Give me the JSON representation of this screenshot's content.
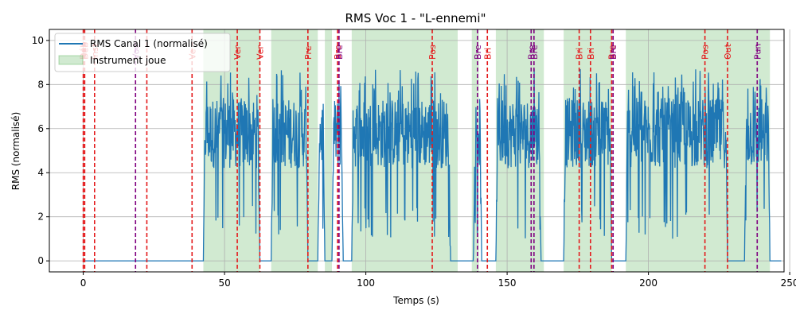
{
  "chart_data": {
    "type": "line",
    "title": "RMS Voc 1 - \"L-ennemi\"",
    "xlabel": "Temps (s)",
    "ylabel": "RMS (normalisé)",
    "xlim": [
      -12,
      248
    ],
    "ylim": [
      -0.5,
      10.5
    ],
    "xticks": [
      0,
      50,
      100,
      150,
      200,
      250
    ],
    "yticks": [
      0,
      2,
      4,
      6,
      8,
      10
    ],
    "grid": true,
    "legend_position": "top-left",
    "colors": {
      "line": "#1f77b4",
      "band": "#2ca02c",
      "marker_red": "#e41a1c",
      "marker_purple": "#800080",
      "grid": "#b0b0b0"
    },
    "series": [
      {
        "name": "RMS Canal 1 (normalisé)",
        "segments": [
          {
            "start": 0,
            "end": 42.5,
            "level": "silence"
          },
          {
            "start": 42.5,
            "end": 62.5,
            "level": "active"
          },
          {
            "start": 62.5,
            "end": 66.5,
            "level": "silence"
          },
          {
            "start": 66.5,
            "end": 79.5,
            "level": "active"
          },
          {
            "start": 79.5,
            "end": 83.0,
            "level": "silence"
          },
          {
            "start": 83.0,
            "end": 85.5,
            "level": "active"
          },
          {
            "start": 85.5,
            "end": 88.0,
            "level": "silence"
          },
          {
            "start": 88.0,
            "end": 92.0,
            "level": "active"
          },
          {
            "start": 92.0,
            "end": 95.0,
            "level": "silence"
          },
          {
            "start": 95.0,
            "end": 130.0,
            "level": "active"
          },
          {
            "start": 130.0,
            "end": 138.0,
            "level": "silence"
          },
          {
            "start": 138.0,
            "end": 141.0,
            "level": "active"
          },
          {
            "start": 141.0,
            "end": 146.0,
            "level": "silence"
          },
          {
            "start": 146.0,
            "end": 162.0,
            "level": "active"
          },
          {
            "start": 162.0,
            "end": 170.0,
            "level": "silence"
          },
          {
            "start": 170.0,
            "end": 187.0,
            "level": "active"
          },
          {
            "start": 187.0,
            "end": 192.0,
            "level": "silence"
          },
          {
            "start": 192.0,
            "end": 228.0,
            "level": "active"
          },
          {
            "start": 228.0,
            "end": 234.0,
            "level": "silence"
          },
          {
            "start": 234.0,
            "end": 243.0,
            "level": "active"
          },
          {
            "start": 243.0,
            "end": 247.0,
            "level": "silence"
          }
        ],
        "active_range": [
          1.0,
          8.7
        ],
        "active_mean": 5.8,
        "silence_value": 0
      }
    ],
    "bands_name": "Instrument joue",
    "bands": [
      [
        42.5,
        62.5
      ],
      [
        66.5,
        83.0
      ],
      [
        85.5,
        88.0
      ],
      [
        95.0,
        132.5
      ],
      [
        137.5,
        140.0
      ],
      [
        146.0,
        163.0
      ],
      [
        170.0,
        180.0
      ],
      [
        180.0,
        187.0
      ],
      [
        192.0,
        243.0
      ]
    ],
    "markers": [
      {
        "x": 0,
        "label": "Déb",
        "color": "red"
      },
      {
        "x": 0.5,
        "label": "Déb",
        "color": "red"
      },
      {
        "x": 4,
        "label": "Inst",
        "color": "red"
      },
      {
        "x": 18.5,
        "label": "Voc",
        "color": "purple"
      },
      {
        "x": 22.5,
        "label": "",
        "color": "red"
      },
      {
        "x": 38.5,
        "label": "Ve",
        "color": "red"
      },
      {
        "x": 54.5,
        "label": "Ver",
        "color": "red"
      },
      {
        "x": 62.5,
        "label": "Ver",
        "color": "red"
      },
      {
        "x": 79.5,
        "label": "Pre",
        "color": "red"
      },
      {
        "x": 90,
        "label": "Bre",
        "color": "red"
      },
      {
        "x": 90.5,
        "label": "Bre",
        "color": "purple"
      },
      {
        "x": 123.5,
        "label": "Pos",
        "color": "red"
      },
      {
        "x": 139.5,
        "label": "Bre",
        "color": "purple"
      },
      {
        "x": 143,
        "label": "Bri",
        "color": "red"
      },
      {
        "x": 158.5,
        "label": "Bre",
        "color": "purple"
      },
      {
        "x": 159.5,
        "label": "Bre",
        "color": "purple"
      },
      {
        "x": 175.5,
        "label": "Bri",
        "color": "red"
      },
      {
        "x": 179.5,
        "label": "Bri",
        "color": "red"
      },
      {
        "x": 187,
        "label": "Bre",
        "color": "red"
      },
      {
        "x": 187.5,
        "label": "Bre",
        "color": "purple"
      },
      {
        "x": 220,
        "label": "Pos",
        "color": "red"
      },
      {
        "x": 228,
        "label": "Out",
        "color": "red"
      },
      {
        "x": 238.5,
        "label": "Pun",
        "color": "purple"
      }
    ]
  }
}
